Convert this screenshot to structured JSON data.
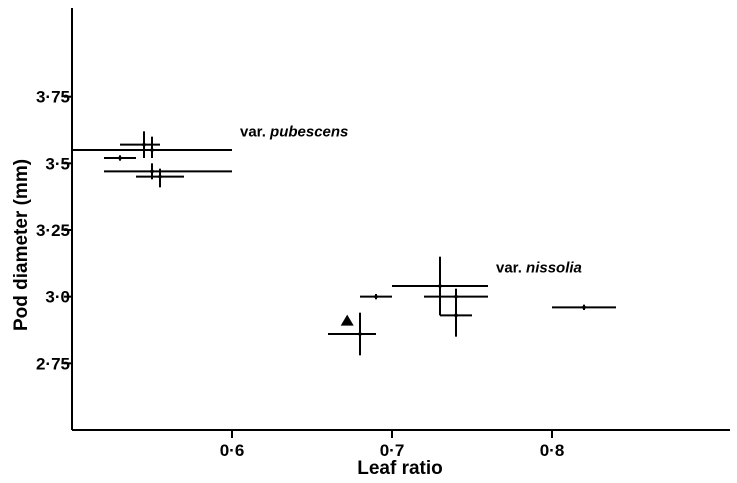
{
  "chart_data": {
    "type": "scatter",
    "xlabel": "Leaf ratio",
    "ylabel": "Pod diameter (mm)",
    "xlim": [
      0.5,
      0.9
    ],
    "ylim": [
      2.5,
      4.0
    ],
    "x_ticks": [
      {
        "value": 0.6,
        "label": "0·6"
      },
      {
        "value": 0.7,
        "label": "0·7"
      },
      {
        "value": 0.8,
        "label": "0·8"
      }
    ],
    "y_ticks": [
      {
        "value": 2.75,
        "label": "2·75"
      },
      {
        "value": 3.0,
        "label": "3·0"
      },
      {
        "value": 3.25,
        "label": "3·25"
      },
      {
        "value": 3.5,
        "label": "3·5"
      },
      {
        "value": 3.75,
        "label": "3·75"
      }
    ],
    "annotations": [
      {
        "text_prefix": "var. ",
        "text_italic": "pubescens",
        "x": 0.605,
        "y": 3.6
      },
      {
        "text_prefix": "var. ",
        "text_italic": "nissolia",
        "x": 0.765,
        "y": 3.09
      }
    ],
    "series": [
      {
        "points": [
          {
            "x": 0.53,
            "x_low": 0.52,
            "x_high": 0.54,
            "y": 3.52,
            "y_low": 3.51,
            "y_high": 3.53
          },
          {
            "x": 0.545,
            "x_low": 0.53,
            "x_high": 0.555,
            "y": 3.57,
            "y_low": 3.52,
            "y_high": 3.62
          },
          {
            "x": 0.55,
            "x_low": 0.5,
            "x_high": 0.6,
            "y": 3.55,
            "y_low": 3.52,
            "y_high": 3.6
          },
          {
            "x": 0.55,
            "x_low": 0.52,
            "x_high": 0.6,
            "y": 3.47,
            "y_low": 3.44,
            "y_high": 3.5
          },
          {
            "x": 0.555,
            "x_low": 0.54,
            "x_high": 0.57,
            "y": 3.45,
            "y_low": 3.41,
            "y_high": 3.48
          },
          {
            "x": 0.68,
            "x_low": 0.66,
            "x_high": 0.69,
            "y": 2.86,
            "y_low": 2.78,
            "y_high": 2.94
          },
          {
            "x": 0.69,
            "x_low": 0.68,
            "x_high": 0.7,
            "y": 3.0,
            "y_low": 2.99,
            "y_high": 3.01
          },
          {
            "x": 0.73,
            "x_low": 0.7,
            "x_high": 0.76,
            "y": 3.04,
            "y_low": 2.93,
            "y_high": 3.15
          },
          {
            "x": 0.74,
            "x_low": 0.72,
            "x_high": 0.76,
            "y": 3.0,
            "y_low": 2.97,
            "y_high": 3.03
          },
          {
            "x": 0.74,
            "x_low": 0.73,
            "x_high": 0.75,
            "y": 2.93,
            "y_low": 2.85,
            "y_high": 3.0
          },
          {
            "x": 0.82,
            "x_low": 0.8,
            "x_high": 0.84,
            "y": 2.96,
            "y_low": 2.95,
            "y_high": 2.97
          }
        ]
      }
    ],
    "special_markers": [
      {
        "shape": "filled-triangle",
        "x": 0.672,
        "y": 2.91
      }
    ],
    "grid": false
  }
}
